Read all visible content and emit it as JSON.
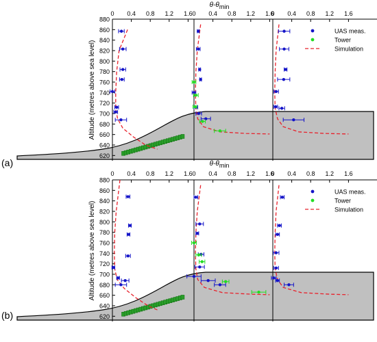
{
  "figure_title": "",
  "chart_data": [
    {
      "type": "scatter",
      "panel_label": "(a)",
      "xlabel": "θ-θ",
      "xlabel_sub": "min",
      "ylabel": "Altitude (metres above sea level)",
      "ylim": [
        610,
        880
      ],
      "yticks": [
        620,
        640,
        660,
        680,
        700,
        720,
        740,
        760,
        780,
        800,
        820,
        840,
        860,
        880
      ],
      "xlim": [
        0,
        1.6
      ],
      "xticks": [
        "0",
        "0.4",
        "0.8",
        "1.2",
        "1.6"
      ],
      "legend": {
        "position": "top-right",
        "entries": [
          "UAS meas.",
          "Tower",
          "Simulation"
        ]
      },
      "colors": {
        "uas": "#1414c8",
        "tower": "#22dd22",
        "simulation": "#e8202a",
        "terrain": "#c0c0c0",
        "trees": "#2a9e2a"
      },
      "profiles": [
        {
          "uas": [
            {
              "y": 857,
              "x": 0.19,
              "err": 0.06
            },
            {
              "y": 823,
              "x": 0.22,
              "err": 0.07
            },
            {
              "y": 784,
              "x": 0.22,
              "err": 0.06
            },
            {
              "y": 765,
              "x": 0.2,
              "err": 0.05
            },
            {
              "y": 742,
              "x": 0.0,
              "err": 0.05
            },
            {
              "y": 712,
              "x": 0.09,
              "err": 0.04
            },
            {
              "y": 703,
              "x": 0.07,
              "err": 0.04
            },
            {
              "y": 688,
              "x": 0.18,
              "err": 0.12
            }
          ],
          "tower": [],
          "simulation": [
            [
              0.32,
              860
            ],
            [
              0.14,
              820
            ],
            [
              0.09,
              780
            ],
            [
              0.07,
              740
            ],
            [
              0.07,
              710
            ],
            [
              0.11,
              690
            ],
            [
              0.22,
              672
            ],
            [
              0.45,
              655
            ],
            [
              0.7,
              640
            ],
            [
              0.95,
              632
            ]
          ]
        },
        {
          "uas": [
            {
              "y": 857,
              "x": 0.09,
              "err": 0.02
            },
            {
              "y": 823,
              "x": 0.09,
              "err": 0.04
            },
            {
              "y": 784,
              "x": 0.12,
              "err": 0.02
            },
            {
              "y": 765,
              "x": 0.14,
              "err": 0.02
            },
            {
              "y": 740,
              "x": 0.0,
              "err": 0.04
            },
            {
              "y": 712,
              "x": 0.04,
              "err": 0.04
            },
            {
              "y": 700,
              "x": 0.1,
              "err": 0.06
            },
            {
              "y": 690,
              "x": 0.25,
              "err": 0.1
            }
          ],
          "tower": [
            {
              "y": 760,
              "x": 0.0,
              "err": 0.04
            },
            {
              "y": 735,
              "x": 0.04,
              "err": 0.05
            },
            {
              "y": 713,
              "x": 0.02,
              "err": 0.04
            },
            {
              "y": 685,
              "x": 0.18,
              "err": 0.06
            },
            {
              "y": 667,
              "x": 0.55,
              "err": 0.12
            }
          ],
          "simulation": [
            [
              0.14,
              870
            ],
            [
              0.07,
              820
            ],
            [
              0.04,
              780
            ],
            [
              0.03,
              740
            ],
            [
              0.04,
              710
            ],
            [
              0.08,
              690
            ],
            [
              0.2,
              675
            ],
            [
              0.55,
              665
            ],
            [
              1.1,
              662
            ],
            [
              1.6,
              661
            ]
          ]
        },
        {
          "uas": [
            {
              "y": 857,
              "x": 0.24,
              "err": 0.12
            },
            {
              "y": 823,
              "x": 0.24,
              "err": 0.1
            },
            {
              "y": 784,
              "x": 0.27,
              "err": 0.03
            },
            {
              "y": 765,
              "x": 0.23,
              "err": 0.13
            },
            {
              "y": 742,
              "x": 0.07,
              "err": 0.05
            },
            {
              "y": 713,
              "x": 0.06,
              "err": 0.04
            },
            {
              "y": 710,
              "x": 0.19,
              "err": 0.06
            },
            {
              "y": 688,
              "x": 0.44,
              "err": 0.22
            }
          ],
          "tower": [],
          "simulation": [
            [
              0.13,
              870
            ],
            [
              0.07,
              820
            ],
            [
              0.05,
              780
            ],
            [
              0.04,
              740
            ],
            [
              0.05,
              710
            ],
            [
              0.1,
              690
            ],
            [
              0.22,
              675
            ],
            [
              0.55,
              665
            ],
            [
              1.1,
              662
            ],
            [
              1.6,
              661
            ]
          ]
        }
      ]
    },
    {
      "type": "scatter",
      "panel_label": "(b)",
      "xlabel": "θ-θ",
      "xlabel_sub": "min",
      "ylabel": "Altitude (metres above sea level)",
      "ylim": [
        610,
        880
      ],
      "yticks": [
        620,
        640,
        660,
        680,
        700,
        720,
        740,
        760,
        780,
        800,
        820,
        840,
        860,
        880
      ],
      "xlim": [
        0,
        1.6
      ],
      "xticks": [
        "0",
        "0.4",
        "0.8",
        "1.2",
        "1.6"
      ],
      "legend": {
        "position": "top-right",
        "entries": [
          "UAS meas.",
          "Tower",
          "Simulation"
        ]
      },
      "colors": {
        "uas": "#1414c8",
        "tower": "#22dd22",
        "simulation": "#e8202a",
        "terrain": "#c0c0c0",
        "trees": "#2a9e2a"
      },
      "profiles": [
        {
          "uas": [
            {
              "y": 848,
              "x": 0.33,
              "err": 0.04
            },
            {
              "y": 793,
              "x": 0.37,
              "err": 0.03
            },
            {
              "y": 776,
              "x": 0.34,
              "err": 0.03
            },
            {
              "y": 735,
              "x": 0.33,
              "err": 0.05
            },
            {
              "y": 713,
              "x": 0.02,
              "err": 0.03
            },
            {
              "y": 693,
              "x": 0.12,
              "err": 0.03
            },
            {
              "y": 688,
              "x": 0.27,
              "err": 0.08
            },
            {
              "y": 680,
              "x": 0.18,
              "err": 0.12
            }
          ],
          "tower": [],
          "simulation": [
            [
              0.16,
              880
            ],
            [
              0.08,
              820
            ],
            [
              0.05,
              780
            ],
            [
              0.04,
              740
            ],
            [
              0.05,
              710
            ],
            [
              0.1,
              690
            ],
            [
              0.25,
              673
            ],
            [
              0.5,
              655
            ],
            [
              0.75,
              640
            ],
            [
              0.95,
              632
            ]
          ]
        },
        {
          "uas": [
            {
              "y": 847,
              "x": 0.04,
              "err": 0.04
            },
            {
              "y": 796,
              "x": 0.12,
              "err": 0.08
            },
            {
              "y": 778,
              "x": 0.07,
              "err": 0.03
            },
            {
              "y": 738,
              "x": 0.15,
              "err": 0.06
            },
            {
              "y": 714,
              "x": 0.12,
              "err": 0.1
            },
            {
              "y": 696,
              "x": 0.0,
              "err": 0.15
            },
            {
              "y": 688,
              "x": 0.3,
              "err": 0.15
            },
            {
              "y": 680,
              "x": 0.55,
              "err": 0.12
            }
          ],
          "tower": [
            {
              "y": 760,
              "x": 0.0,
              "err": 0.05
            },
            {
              "y": 737,
              "x": 0.1,
              "err": 0.06
            },
            {
              "y": 724,
              "x": 0.17,
              "err": 0.06
            },
            {
              "y": 686,
              "x": 0.67,
              "err": 0.07
            },
            {
              "y": 666,
              "x": 1.37,
              "err": 0.15
            }
          ],
          "simulation": [
            [
              0.14,
              870
            ],
            [
              0.07,
              820
            ],
            [
              0.04,
              780
            ],
            [
              0.03,
              740
            ],
            [
              0.04,
              710
            ],
            [
              0.08,
              690
            ],
            [
              0.22,
              675
            ],
            [
              0.6,
              665
            ],
            [
              1.2,
              662
            ],
            [
              1.6,
              661
            ]
          ]
        },
        {
          "uas": [
            {
              "y": 847,
              "x": 0.2,
              "err": 0.04
            },
            {
              "y": 793,
              "x": 0.14,
              "err": 0.04
            },
            {
              "y": 776,
              "x": 0.1,
              "err": 0.04
            },
            {
              "y": 741,
              "x": 0.07,
              "err": 0.06
            },
            {
              "y": 712,
              "x": 0.07,
              "err": 0.05
            },
            {
              "y": 693,
              "x": 0.02,
              "err": 0.05
            },
            {
              "y": 688,
              "x": 0.1,
              "err": 0.04
            },
            {
              "y": 680,
              "x": 0.34,
              "err": 0.1
            }
          ],
          "tower": [],
          "simulation": [
            [
              0.13,
              870
            ],
            [
              0.07,
              820
            ],
            [
              0.05,
              780
            ],
            [
              0.04,
              740
            ],
            [
              0.05,
              710
            ],
            [
              0.1,
              690
            ],
            [
              0.22,
              675
            ],
            [
              0.6,
              665
            ],
            [
              1.2,
              662
            ],
            [
              1.6,
              661
            ]
          ]
        }
      ]
    }
  ]
}
